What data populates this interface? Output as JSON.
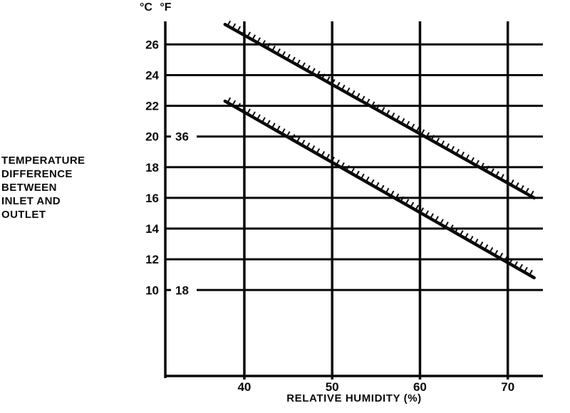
{
  "y_axis_title": "TEMPERATURE\nDIFFERENCE\nBETWEEN\nINLET AND\nOUTLET",
  "chart_data": {
    "type": "line",
    "title": "",
    "xlabel": "RELATIVE HUMIDITY (%)",
    "ylabel": "TEMPERATURE DIFFERENCE BETWEEN INLET AND OUTLET",
    "unit_labels": [
      "°C",
      "°F"
    ],
    "x_ticks": [
      40,
      50,
      60,
      70
    ],
    "y_ticks_celsius": [
      26,
      24,
      22,
      20,
      18,
      16,
      14,
      12,
      10
    ],
    "y_ticks_fahrenheit": [
      {
        "celsius": 20,
        "label": "36"
      },
      {
        "celsius": 10,
        "label": "18"
      }
    ],
    "xlim": [
      31,
      74
    ],
    "ylim_celsius": [
      4.4,
      27.5
    ],
    "grid": true,
    "legend": "none",
    "line_color": "#0a0a0a",
    "background": "#ffffff",
    "series": [
      {
        "name": "upper-limit-line",
        "points": [
          {
            "x": 37.8,
            "y": 27.3
          },
          {
            "x": 73.0,
            "y": 16.0
          }
        ],
        "hatch_side": "upper"
      },
      {
        "name": "lower-limit-line",
        "points": [
          {
            "x": 37.8,
            "y": 22.3
          },
          {
            "x": 73.0,
            "y": 10.8
          }
        ],
        "hatch_side": "upper"
      }
    ]
  }
}
